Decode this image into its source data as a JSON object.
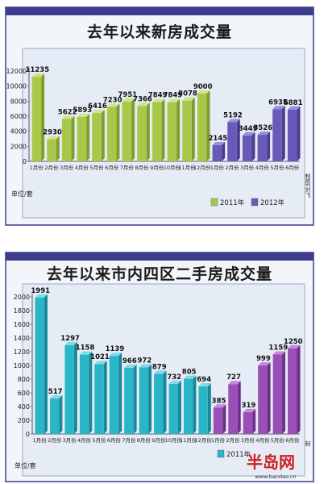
{
  "chart_data": [
    {
      "type": "bar",
      "title": "去年以来新房成交量",
      "unit_label": "单位/套",
      "categories": [
        "1月份",
        "2月份",
        "3月份",
        "4月份",
        "5月份",
        "6月份",
        "7月份",
        "8月份",
        "9月份",
        "10月份",
        "11月份",
        "12月份",
        "1月份",
        "2月份",
        "3月份",
        "4月份",
        "5月份",
        "6月份"
      ],
      "values": [
        11235,
        2930,
        5622,
        5893,
        6416,
        7230,
        7951,
        7366,
        7849,
        7849,
        8078,
        9000,
        2145,
        5192,
        3449,
        3526,
        6935,
        6881
      ],
      "value_labels": [
        "11235",
        "2930",
        "5622",
        "5893",
        "6416",
        "7230",
        "7951",
        "7366",
        "7849",
        "7849",
        "8078",
        "9000",
        "2145",
        "5192",
        "3449",
        "3526",
        "6935",
        "6881"
      ],
      "series_index": [
        0,
        0,
        0,
        0,
        0,
        0,
        0,
        0,
        0,
        0,
        0,
        0,
        1,
        1,
        1,
        1,
        1,
        1
      ],
      "legend": [
        {
          "name": "2011年",
          "color": "#a8c84a"
        },
        {
          "name": "2012年",
          "color": "#6a5ab8"
        }
      ],
      "yticks": [
        "0",
        "2000",
        "4000",
        "6000",
        "8000",
        "10000",
        "12000"
      ],
      "ylim": [
        0,
        12000
      ],
      "side_text": "制图/刘飞"
    },
    {
      "type": "bar",
      "title": "去年以来市内四区二手房成交量",
      "unit_label": "单位/套",
      "categories": [
        "1月份",
        "2月份",
        "3月份",
        "4月份",
        "5月份",
        "6月份",
        "7月份",
        "8月份",
        "9月份",
        "10月份",
        "11月份",
        "12月份",
        "1月份",
        "2月份",
        "3月份",
        "4月份",
        "5月份",
        "6月份"
      ],
      "values": [
        1991,
        517,
        1297,
        1158,
        1021,
        1139,
        966,
        972,
        879,
        732,
        805,
        694,
        385,
        727,
        319,
        999,
        1159,
        1250
      ],
      "value_labels": [
        "1991",
        "517",
        "1297",
        "1158",
        "1021",
        "1139",
        "966",
        "972",
        "879",
        "732",
        "805",
        "694",
        "385",
        "727",
        "319",
        "999",
        "1159",
        "1250"
      ],
      "series_index": [
        0,
        0,
        0,
        0,
        0,
        0,
        0,
        0,
        0,
        0,
        0,
        0,
        1,
        1,
        1,
        1,
        1,
        1
      ],
      "legend": [
        {
          "name": "2011年",
          "color": "#2bb6c8"
        }
      ],
      "yticks": [
        "0",
        "200",
        "400",
        "600",
        "800",
        "1000",
        "1200",
        "1400",
        "1600",
        "1800",
        "2000"
      ],
      "ylim": [
        0,
        2000
      ],
      "side_text": "制"
    }
  ],
  "watermark": {
    "brand": "半岛网",
    "url": "www.bandao.cn"
  },
  "colors": {
    "frame": "#3d3d8c",
    "chart_bg": "#e6ecf6",
    "series_2011_top": "#a8c84a",
    "series_2012_top": "#6a5ab8",
    "secondhand_2011": "#2bb6c8",
    "secondhand_2012": "#9a4fb6"
  }
}
